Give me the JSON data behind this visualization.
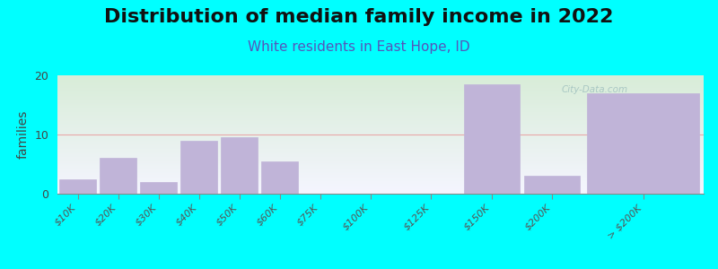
{
  "title": "Distribution of median family income in 2022",
  "subtitle": "White residents in East Hope, ID",
  "ylabel": "families",
  "categories": [
    "$10K",
    "$20K",
    "$30K",
    "$40K",
    "$50K",
    "$60K",
    "$75K",
    "$100K",
    "$125K",
    "$150K",
    "$200K",
    "> $200K"
  ],
  "values": [
    2.5,
    6.0,
    2.0,
    9.0,
    9.5,
    5.5,
    0,
    0,
    0,
    18.5,
    3.0,
    17.0
  ],
  "bar_edges": [
    0,
    1,
    2,
    3,
    4,
    5,
    6,
    7,
    8.5,
    10,
    11.5,
    13,
    16
  ],
  "bar_color": "#c0b4d8",
  "bar_edge_color": "#c0b4d8",
  "background_color": "#00ffff",
  "plot_bg_color_top": "#d8edd8",
  "plot_bg_color_bottom": "#f5f5ff",
  "gridline_color": "#e8a8a8",
  "title_fontsize": 16,
  "subtitle_fontsize": 11,
  "subtitle_color": "#5555bb",
  "ylabel_fontsize": 10,
  "tick_fontsize": 8,
  "ylim": [
    0,
    20
  ],
  "yticks": [
    0,
    10,
    20
  ],
  "watermark": "City-Data.com"
}
